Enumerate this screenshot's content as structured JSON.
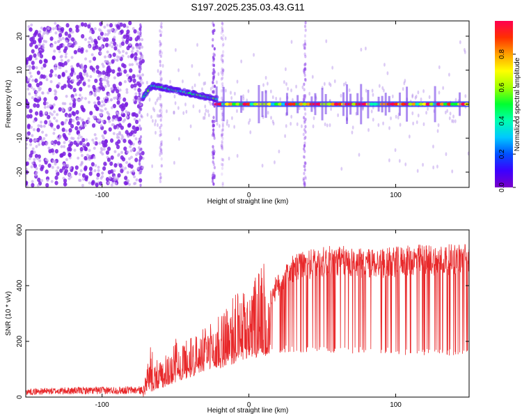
{
  "chart_data": [
    {
      "type": "heatmap",
      "title": "S197.2025.235.03.43.G11",
      "xlabel": "Height of straight line (km)",
      "ylabel": "Frequency (Hz)",
      "xlim": [
        -152,
        150
      ],
      "ylim": [
        -24.5,
        24.5
      ],
      "xticks": [
        -100,
        0,
        100
      ],
      "xtick_labels": [
        "-100",
        "0",
        "100"
      ],
      "yticks": [
        -20,
        -10,
        0,
        10,
        20
      ],
      "ytick_labels": [
        "-20",
        "-10",
        "0",
        "10",
        "20"
      ],
      "colorbar": {
        "label": "Normalized spectral amplitude",
        "range": [
          0,
          1
        ],
        "ticks": [
          0.0,
          0.2,
          0.4,
          0.6,
          0.8
        ],
        "tick_labels": [
          "0.0",
          "0.2",
          "0.4",
          "0.6",
          "0.8"
        ],
        "colors": [
          "#7a00c8",
          "#3c00ff",
          "#0050ff",
          "#00c8ff",
          "#00ffb0",
          "#00ff30",
          "#a0ff00",
          "#ffff00",
          "#ffa000",
          "#ff3000",
          "#ff0050"
        ]
      },
      "regions": [
        {
          "name": "noise",
          "x_from": -152,
          "x_to": -72,
          "y_from": -24,
          "y_to": 24,
          "amplitude": 0.1
        },
        {
          "name": "rising-signal",
          "x_from": -72,
          "x_to": -22,
          "freq_start": 2,
          "freq_peak": 5.5,
          "freq_end": 1.5,
          "amplitude": 0.4
        },
        {
          "name": "steady-signal",
          "x_from": -22,
          "x_to": 150,
          "freq": 0,
          "amplitude": 0.9
        }
      ]
    },
    {
      "type": "line",
      "xlabel": "Height of straight line (km)",
      "ylabel": "SNR (10 * v/v)",
      "xlim": [
        -152,
        150
      ],
      "ylim": [
        0,
        600
      ],
      "xticks": [
        -100,
        0,
        100
      ],
      "xtick_labels": [
        "-100",
        "0",
        "100"
      ],
      "yticks": [
        0,
        200,
        400,
        600
      ],
      "ytick_labels": [
        "0",
        "200",
        "400",
        "600"
      ],
      "color": "#e8282a",
      "series": [
        {
          "name": "SNR",
          "x": [
            -152,
            -140,
            -120,
            -100,
            -80,
            -72,
            -69,
            -67,
            -65,
            -60,
            -55,
            -50,
            -45,
            -40,
            -35,
            -30,
            -25,
            -20,
            -15,
            -10,
            -5,
            0,
            5,
            10,
            15,
            20,
            25,
            30,
            40,
            50,
            60,
            70,
            80,
            90,
            100,
            110,
            120,
            130,
            140,
            150
          ],
          "values": [
            20,
            22,
            24,
            25,
            26,
            26,
            95,
            140,
            110,
            95,
            120,
            160,
            150,
            165,
            175,
            185,
            200,
            220,
            250,
            270,
            290,
            300,
            330,
            355,
            380,
            410,
            450,
            470,
            490,
            500,
            505,
            500,
            495,
            495,
            500,
            505,
            510,
            505,
            510,
            515
          ],
          "dropout_values": [
            0,
            0,
            0,
            0,
            0,
            0,
            10,
            20,
            20,
            30,
            40,
            50,
            60,
            70,
            80,
            90,
            95,
            100,
            110,
            120,
            130,
            135,
            140,
            145,
            150,
            155,
            160,
            160,
            160,
            158,
            155,
            155,
            155,
            155,
            150,
            150,
            148,
            148,
            150,
            150
          ]
        }
      ]
    }
  ]
}
